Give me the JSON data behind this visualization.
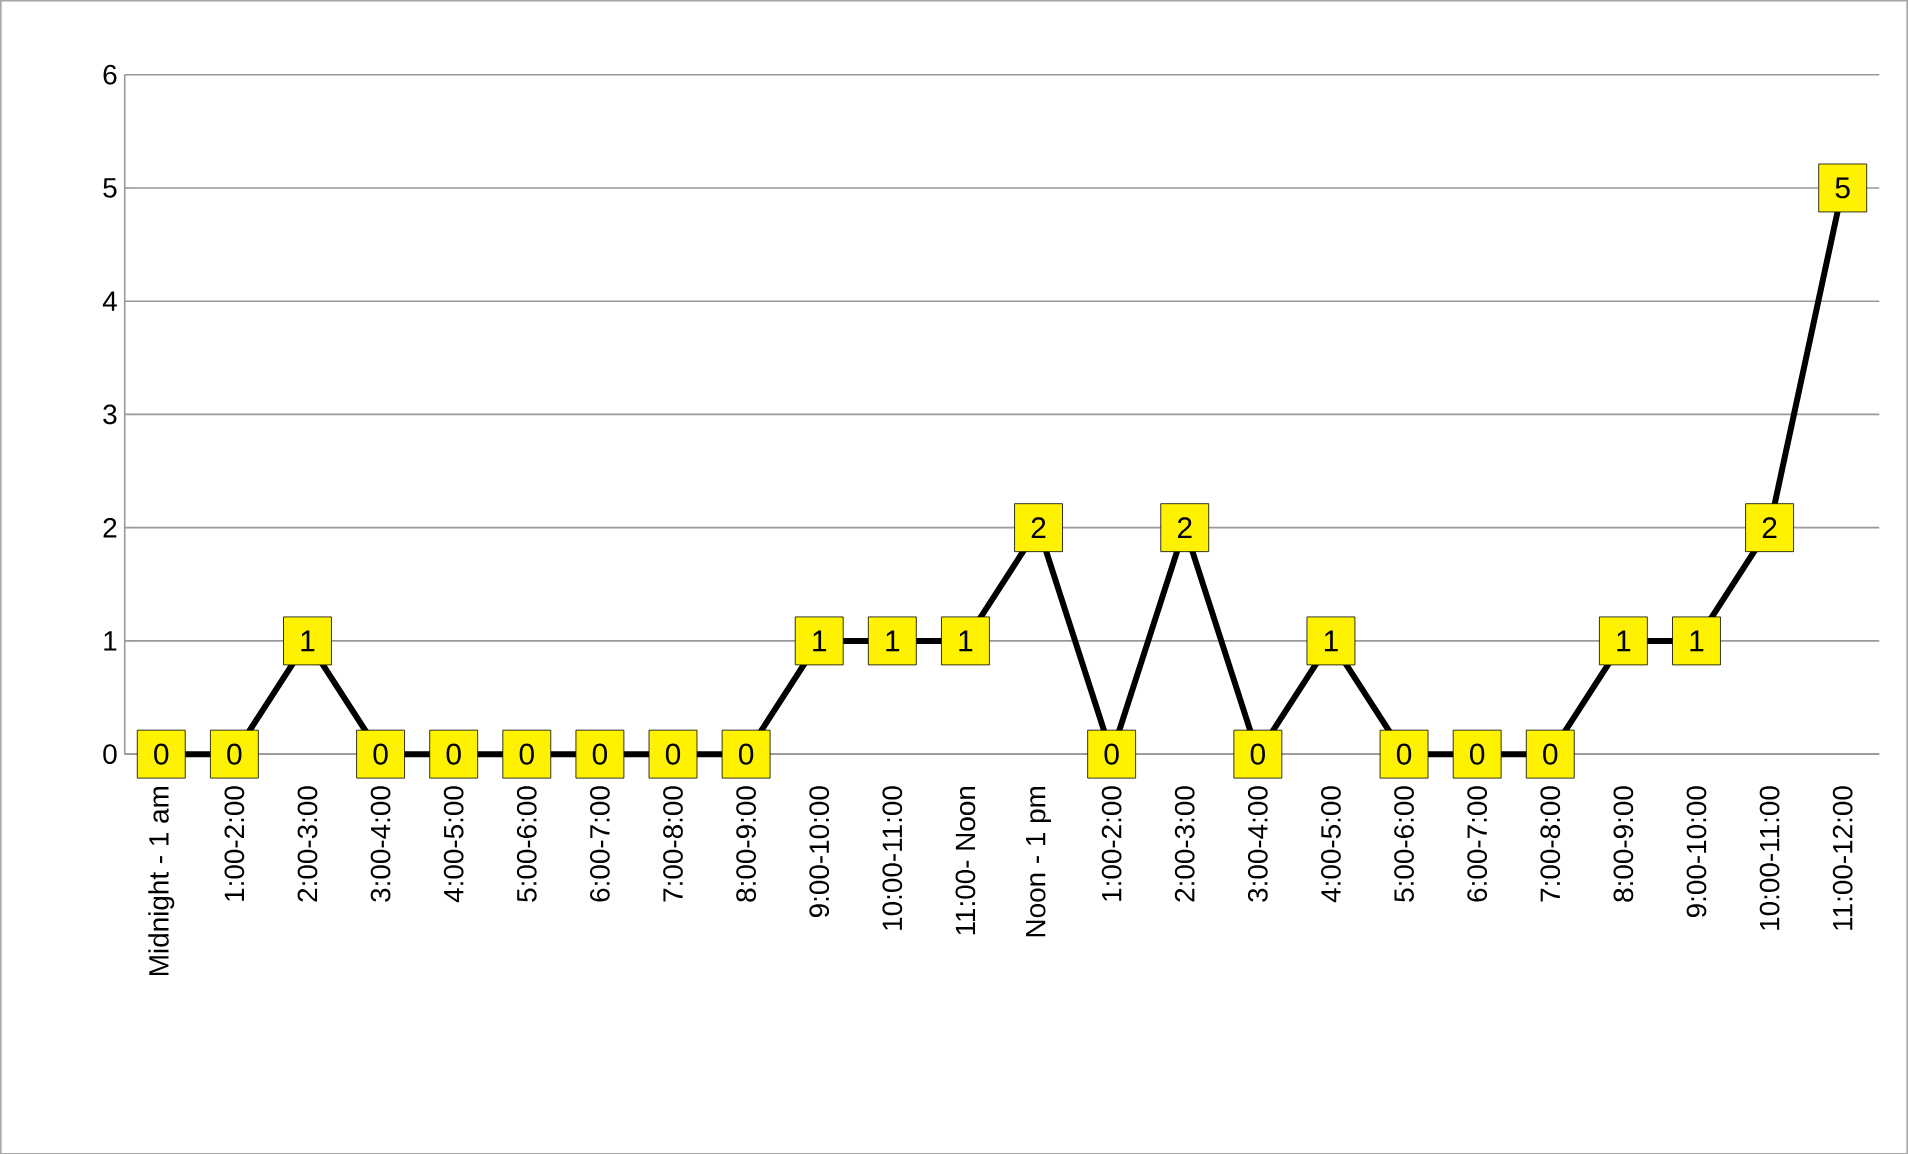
{
  "chart_data": {
    "type": "line",
    "categories": [
      "Midnight - 1 am",
      "1:00-2:00",
      "2:00-3:00",
      "3:00-4:00",
      "4:00-5:00",
      "5:00-6:00",
      "6:00-7:00",
      "7:00-8:00",
      "8:00-9:00",
      "9:00-10:00",
      "10:00-11:00",
      "11:00- Noon",
      "Noon - 1 pm",
      "1:00-2:00",
      "2:00-3:00",
      "3:00-4:00",
      "4:00-5:00",
      "5:00-6:00",
      "6:00-7:00",
      "7:00-8:00",
      "8:00-9:00",
      "9:00-10:00",
      "10:00-11:00",
      "11:00-12:00"
    ],
    "values": [
      0,
      0,
      1,
      0,
      0,
      0,
      0,
      0,
      0,
      1,
      1,
      1,
      2,
      0,
      2,
      0,
      1,
      0,
      0,
      0,
      1,
      1,
      2,
      5
    ],
    "color": "#000000",
    "ylim": [
      0,
      6
    ],
    "yticks": [
      0,
      1,
      2,
      3,
      4,
      5,
      6
    ],
    "grid": "y",
    "marker": "square",
    "line_style": "solid",
    "data_labels": true
  }
}
